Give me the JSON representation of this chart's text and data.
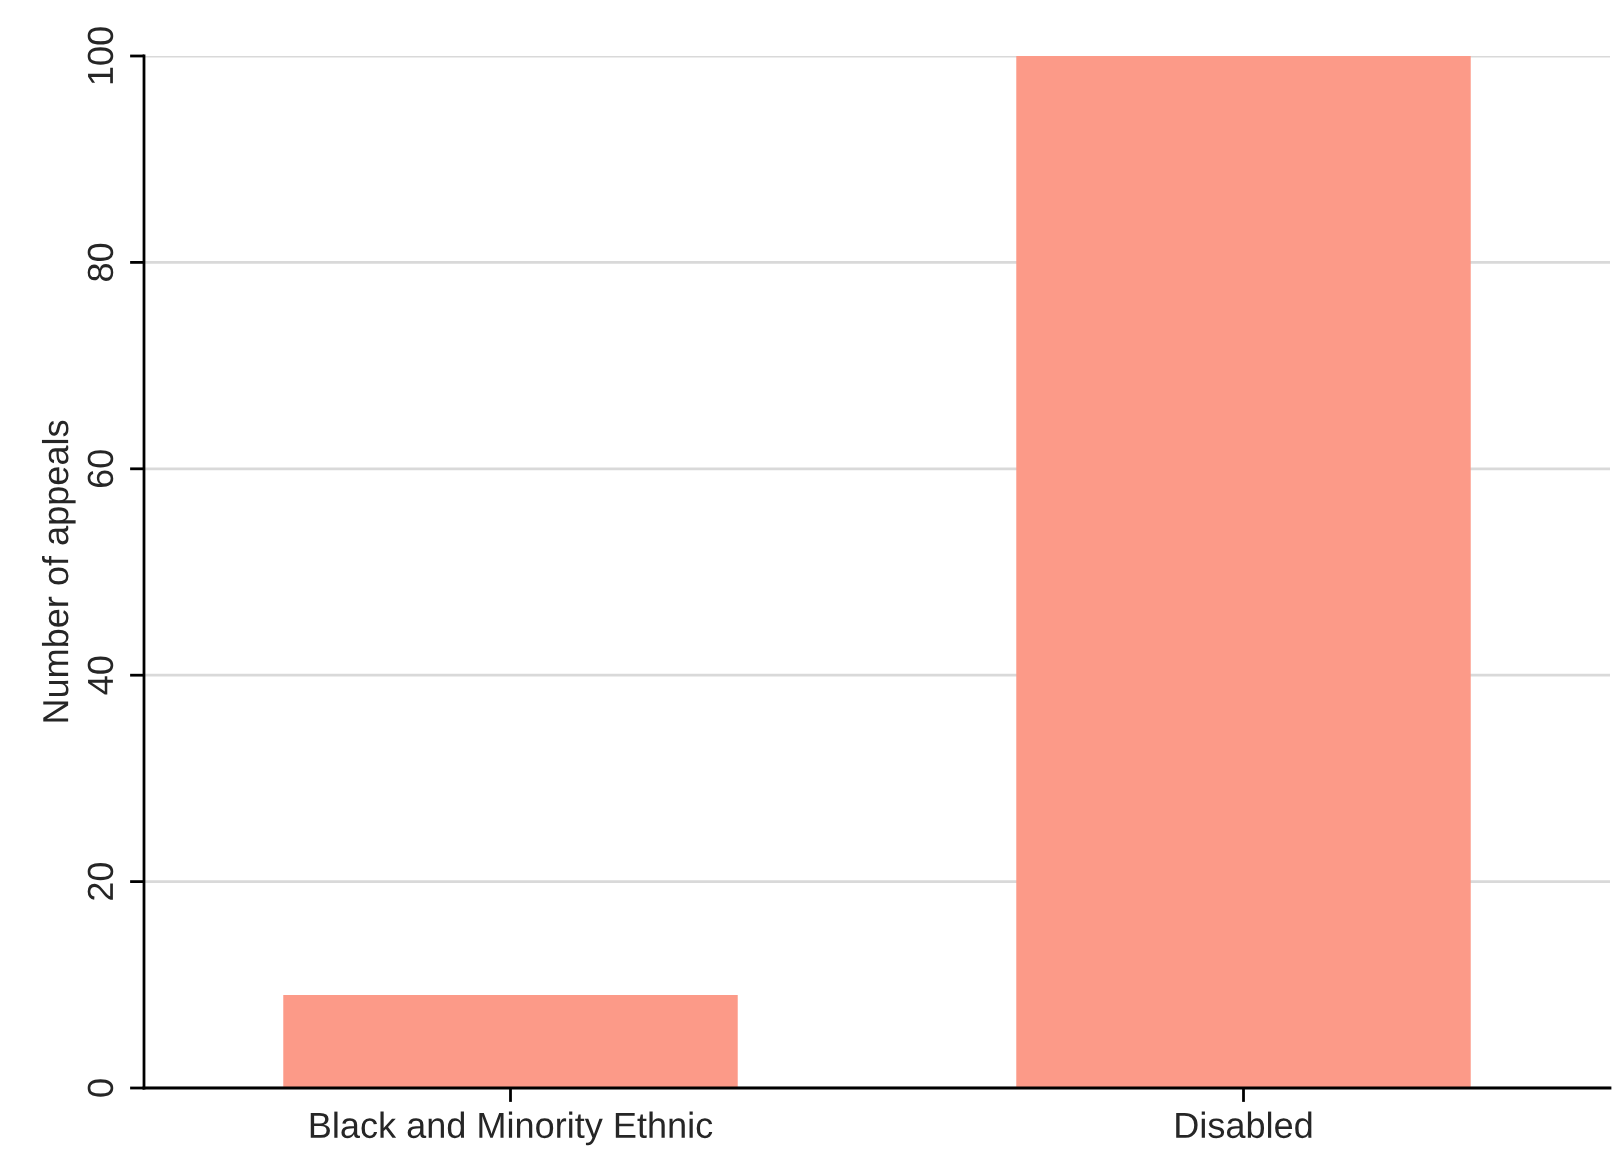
{
  "chart_data": {
    "type": "bar",
    "ylabel": "Number of appeals",
    "categories": [
      "Black and Minority Ethnic",
      "Disabled"
    ],
    "values": [
      9,
      100
    ],
    "color": "#fc9a88",
    "ylim": [
      0,
      100
    ],
    "yticks": [
      0,
      20,
      40,
      60,
      80,
      100
    ],
    "grid": "y"
  }
}
